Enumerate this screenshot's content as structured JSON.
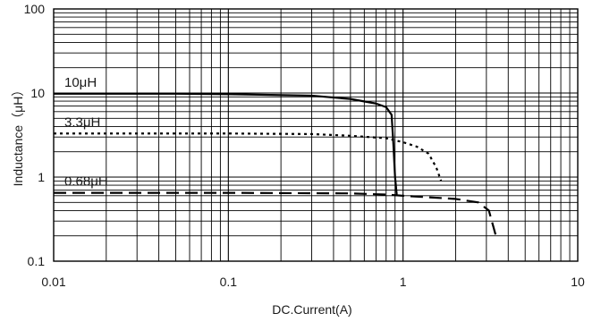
{
  "chart_data": {
    "type": "line",
    "title": "",
    "xlabel": "DC.Current(A)",
    "ylabel": "Inductance（μH）",
    "x_scale": "log",
    "y_scale": "log",
    "xlim": [
      0.01,
      10
    ],
    "ylim": [
      0.1,
      100
    ],
    "x_ticks": [
      "0.01",
      "0.1",
      "1",
      "10"
    ],
    "y_ticks": [
      "0.1",
      "1",
      "10",
      "100"
    ],
    "grid": true,
    "series": [
      {
        "name": "10μH",
        "line_style": "solid",
        "color": "#000000",
        "x": [
          0.01,
          0.05,
          0.1,
          0.3,
          0.5,
          0.7,
          0.8,
          0.86,
          0.88,
          0.9,
          0.92
        ],
        "y": [
          9.8,
          9.8,
          9.7,
          9.3,
          8.5,
          7.5,
          6.8,
          5.5,
          2.5,
          1.0,
          0.62
        ]
      },
      {
        "name": "3.3μH",
        "line_style": "dotted",
        "color": "#000000",
        "x": [
          0.01,
          0.05,
          0.1,
          0.3,
          0.5,
          0.8,
          1.0,
          1.2,
          1.4,
          1.55,
          1.65
        ],
        "y": [
          3.3,
          3.3,
          3.3,
          3.25,
          3.1,
          2.9,
          2.6,
          2.3,
          1.9,
          1.3,
          0.9
        ]
      },
      {
        "name": "0.68μH",
        "line_style": "dashed",
        "color": "#000000",
        "x": [
          0.01,
          0.1,
          0.5,
          0.8,
          1.0,
          2.0,
          2.7,
          3.1,
          3.4
        ],
        "y": [
          0.65,
          0.65,
          0.64,
          0.62,
          0.6,
          0.55,
          0.5,
          0.4,
          0.2
        ]
      }
    ]
  }
}
